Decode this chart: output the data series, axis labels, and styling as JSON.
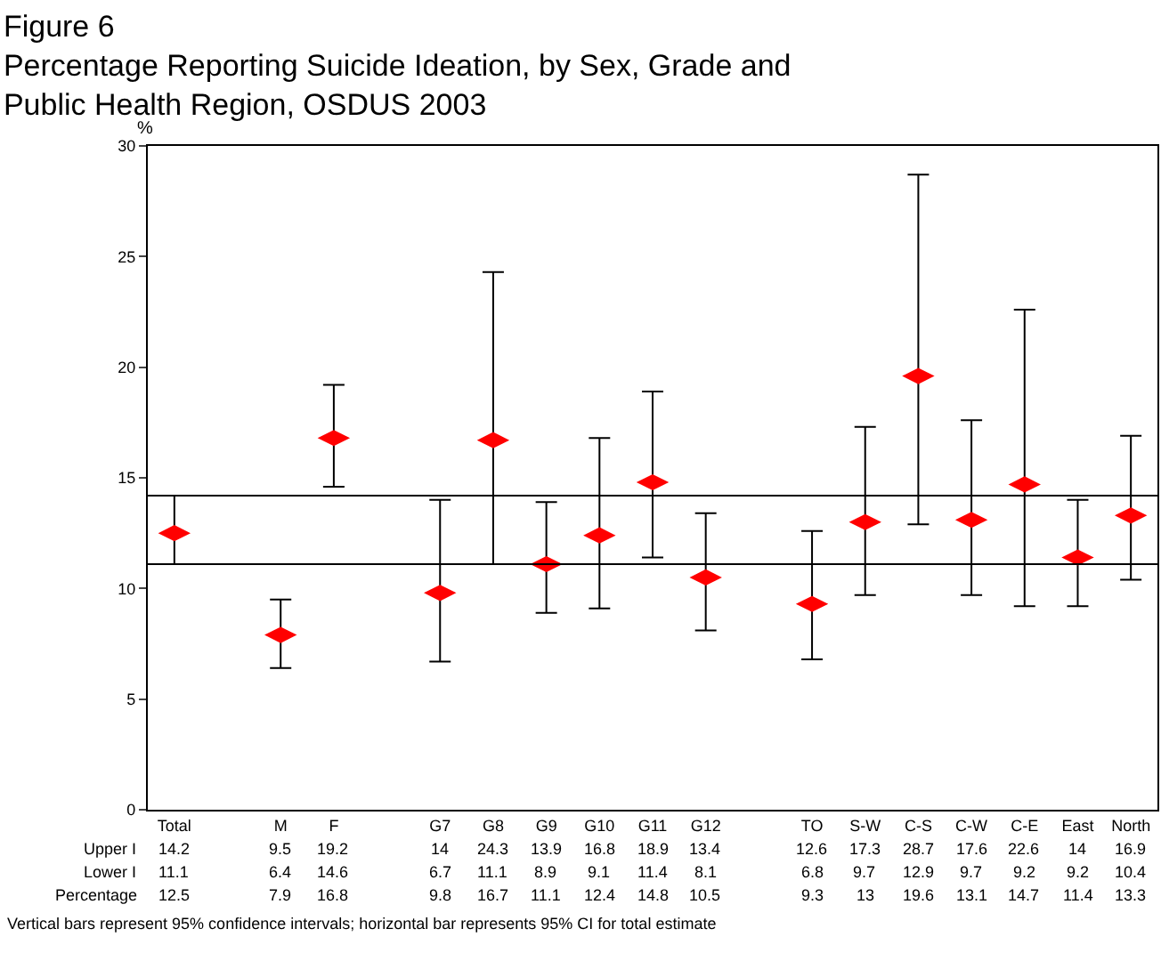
{
  "chart_data": {
    "type": "scatter",
    "title": "Figure 6",
    "subtitle": "Percentage Reporting Suicide Ideation, by Sex, Grade and Public Health Region, OSDUS 2003",
    "ylabel": "%",
    "categories": [
      "Total",
      null,
      "M",
      "F",
      null,
      "G7",
      "G8",
      "G9",
      "G10",
      "G11",
      "G12",
      null,
      "TO",
      "S-W",
      "C-S",
      "C-W",
      "C-E",
      "East",
      "North"
    ],
    "series": [
      {
        "color": "#ff0000",
        "values": [
          12.5,
          null,
          7.9,
          16.8,
          null,
          9.8,
          16.7,
          11.1,
          12.4,
          14.8,
          10.5,
          null,
          9.3,
          13,
          19.6,
          13.1,
          14.7,
          11.4,
          13.3
        ],
        "errors": [
          [
            11.1,
            14.2
          ],
          null,
          [
            6.4,
            9.5
          ],
          [
            14.6,
            19.2
          ],
          null,
          [
            6.7,
            14
          ],
          [
            11.1,
            24.3
          ],
          [
            8.9,
            13.9
          ],
          [
            9.1,
            16.8
          ],
          [
            11.4,
            18.9
          ],
          [
            8.1,
            13.4
          ],
          null,
          [
            6.8,
            12.6
          ],
          [
            9.7,
            17.3
          ],
          [
            12.9,
            28.7
          ],
          [
            9.7,
            17.6
          ],
          [
            9.2,
            22.6
          ],
          [
            9.2,
            14
          ],
          [
            10.4,
            16.9
          ]
        ]
      }
    ],
    "ylim": [
      0,
      30
    ],
    "yticks": [
      0,
      5,
      10,
      15,
      20,
      25,
      30
    ],
    "legend": false,
    "marker": "diamond",
    "data_labels": true,
    "ref_lines": [
      {
        "axis": "y",
        "value": 14.2,
        "color": "#000000"
      },
      {
        "axis": "y",
        "value": 11.1,
        "color": "#000000"
      }
    ],
    "annotations": [
      "Upper I",
      "14.2",
      "9.5",
      "19.2",
      "14",
      "24.3",
      "13.9",
      "16.8",
      "18.9",
      "13.4",
      "12.6",
      "17.3",
      "28.7",
      "17.6",
      "22.6",
      "14",
      "16.9",
      "Lower I",
      "11.1",
      "6.4",
      "14.6",
      "6.7",
      "11.1",
      "8.9",
      "9.1",
      "11.4",
      "8.1",
      "6.8",
      "9.7",
      "12.9",
      "9.7",
      "9.2",
      "9.2",
      "10.4",
      "Percentage",
      "Vertical bars represent 95% confidence intervals; horizontal bar represents 95% CI for total estimate"
    ]
  }
}
